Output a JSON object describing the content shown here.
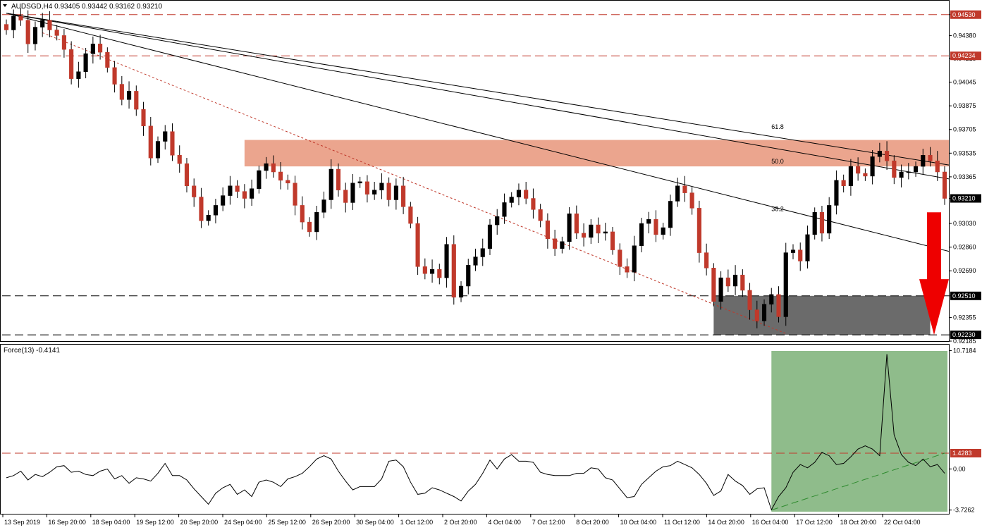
{
  "chart_data": [
    {
      "type": "candlestick",
      "symbol_header": "AUDSGD,H4  0.93405 0.93442 0.93162 0.93210",
      "ylim": [
        0.92185,
        0.94625
      ],
      "y_ticks": [
        "0.94530",
        "0.94380",
        "0.94215",
        "0.94045",
        "0.93875",
        "0.93705",
        "0.93535",
        "0.93365",
        "0.93210",
        "0.93030",
        "0.92860",
        "0.92690",
        "0.92510",
        "0.92355",
        "0.92230",
        "0.92185"
      ],
      "last_price": {
        "label": "0.93210",
        "value": 0.9321,
        "color": "#000000"
      },
      "horizontal_levels": [
        {
          "label": "0.94530",
          "value": 0.9453,
          "color": "#c0392b"
        },
        {
          "label": "0.94234",
          "value": 0.94234,
          "color": "#c0392b"
        },
        {
          "label": "0.92510",
          "value": 0.9251,
          "color": "#000000"
        },
        {
          "label": "0.92230",
          "value": 0.9223,
          "color": "#000000"
        }
      ],
      "resistance_zone": {
        "low": 0.9344,
        "high": 0.9363,
        "color": "#e8957a"
      },
      "support_zone": {
        "low": 0.9223,
        "high": 0.9251,
        "color": "#6b6b6b"
      },
      "fan_labels": [
        "61.8",
        "50.0",
        "38.2"
      ],
      "fan_origin": {
        "x_index": 0,
        "price": 0.9454
      },
      "fan_lines": [
        {
          "label": "61.8",
          "end_x_index": 130,
          "end_price": 0.9345
        },
        {
          "label": "50.0",
          "end_x_index": 130,
          "end_price": 0.9335
        },
        {
          "label": "38.2",
          "end_x_index": 130,
          "end_price": 0.9283
        }
      ],
      "fan_label_positions": [
        {
          "label": "61.8",
          "x_index": 106,
          "price": 0.9371
        },
        {
          "label": "50.0",
          "x_index": 106,
          "price": 0.9346
        },
        {
          "label": "38.2",
          "x_index": 106,
          "price": 0.9312
        }
      ],
      "trend_line": {
        "color": "#c0392b",
        "x0_index": 5,
        "p0": 0.944,
        "x1_index": 108,
        "p1": 0.9224
      },
      "arrow": {
        "direction": "down",
        "color": "#ee0000"
      },
      "x_tick_labels": [
        "13 Sep 2019",
        "16 Sep 20:00",
        "18 Sep 04:00",
        "19 Sep 12:00",
        "20 Sep 20:00",
        "24 Sep 04:00",
        "25 Sep 12:00",
        "26 Sep 20:00",
        "30 Sep 04:00",
        "1 Oct 12:00",
        "2 Oct 20:00",
        "4 Oct 04:00",
        "7 Oct 12:00",
        "8 Oct 20:00",
        "10 Oct 04:00",
        "11 Oct 12:00",
        "14 Oct 20:00",
        "16 Oct 04:00",
        "17 Oct 12:00",
        "18 Oct 20:00",
        "22 Oct 04:00"
      ],
      "closes": [
        0.9442,
        0.9452,
        0.9449,
        0.9432,
        0.9444,
        0.9449,
        0.9442,
        0.9438,
        0.9428,
        0.9407,
        0.9412,
        0.9425,
        0.9432,
        0.9426,
        0.9415,
        0.9403,
        0.9392,
        0.9398,
        0.9385,
        0.9373,
        0.935,
        0.9362,
        0.9369,
        0.9352,
        0.9346,
        0.933,
        0.9322,
        0.9305,
        0.9309,
        0.9316,
        0.9323,
        0.933,
        0.9326,
        0.9321,
        0.9328,
        0.9341,
        0.9346,
        0.934,
        0.9334,
        0.9332,
        0.9316,
        0.9304,
        0.9297,
        0.9311,
        0.932,
        0.9342,
        0.9327,
        0.9318,
        0.9332,
        0.9333,
        0.9324,
        0.9327,
        0.9332,
        0.932,
        0.933,
        0.9315,
        0.9303,
        0.9272,
        0.9267,
        0.927,
        0.9264,
        0.9288,
        0.925,
        0.9258,
        0.9273,
        0.9279,
        0.9285,
        0.9302,
        0.9308,
        0.9318,
        0.9322,
        0.9327,
        0.9321,
        0.9313,
        0.9305,
        0.9292,
        0.9285,
        0.929,
        0.931,
        0.9296,
        0.9293,
        0.9302,
        0.9296,
        0.9297,
        0.9284,
        0.9272,
        0.9268,
        0.9287,
        0.9303,
        0.9306,
        0.9295,
        0.93,
        0.9319,
        0.933,
        0.9325,
        0.9314,
        0.9282,
        0.9271,
        0.9247,
        0.9264,
        0.9258,
        0.9266,
        0.9255,
        0.9241,
        0.9233,
        0.9245,
        0.9252,
        0.9236,
        0.9282,
        0.9284,
        0.9276,
        0.9295,
        0.9311,
        0.9296,
        0.9316,
        0.9334,
        0.933,
        0.9344,
        0.9339,
        0.9337,
        0.9351,
        0.9355,
        0.9348,
        0.9336,
        0.934,
        0.934,
        0.9344,
        0.9352,
        0.9348,
        0.934,
        0.9321
      ],
      "plot_area_pixels_note": ""
    },
    {
      "type": "line",
      "title": "Force(13) -0.4141",
      "ylim": [
        -4.0,
        11.2
      ],
      "y_ticks": [
        "10.7184",
        "0.00",
        "-3.7262"
      ],
      "reference_level": {
        "label": "1.4283",
        "value": 1.4283,
        "color": "#c0392b"
      },
      "highlight_zone": {
        "from_x_index": 106,
        "to_x_index": 130,
        "color": "#8fbc8b"
      },
      "trend_line": {
        "color": "#2e8b2e",
        "x0_index": 106,
        "v0": -3.73,
        "x1_index": 130,
        "v1": 1.428
      },
      "values": [
        -0.8,
        -0.6,
        -0.2,
        -1.0,
        -0.5,
        -0.7,
        -0.3,
        0.2,
        0.3,
        -0.3,
        -0.2,
        -0.5,
        -0.6,
        -0.2,
        0.0,
        -0.9,
        -0.6,
        -1.3,
        -0.8,
        -0.9,
        -1.1,
        -0.4,
        0.5,
        -0.6,
        -0.6,
        -1.0,
        -1.8,
        -2.5,
        -3.2,
        -2.2,
        -1.7,
        -1.4,
        -2.3,
        -1.9,
        -2.5,
        -1.2,
        -1.0,
        -1.2,
        -1.6,
        -0.9,
        -0.7,
        -0.4,
        0.2,
        0.9,
        1.2,
        0.9,
        -0.2,
        -1.1,
        -1.9,
        -1.6,
        -1.6,
        -1.6,
        -0.9,
        0.7,
        0.8,
        0.2,
        -1.2,
        -2.3,
        -2.2,
        -1.7,
        -1.9,
        -2.2,
        -2.5,
        -2.9,
        -2.0,
        -1.4,
        -0.4,
        0.8,
        0.0,
        0.9,
        1.3,
        0.7,
        0.7,
        0.6,
        -0.3,
        -0.5,
        -0.6,
        -0.6,
        -0.6,
        -0.4,
        -0.4,
        0.1,
        0.0,
        -0.8,
        -1.0,
        -1.8,
        -2.6,
        -2.5,
        -1.4,
        -0.8,
        -0.2,
        0.2,
        0.3,
        0.7,
        0.4,
        0.1,
        -0.5,
        -1.3,
        -2.4,
        -2.0,
        -0.5,
        -1.1,
        -1.5,
        -2.3,
        -1.8,
        -1.7,
        -3.7,
        -2.5,
        -1.7,
        -0.3,
        0.4,
        0.1,
        0.6,
        1.5,
        1.2,
        0.4,
        0.5,
        1.1,
        1.8,
        2.1,
        1.8,
        1.2,
        10.4,
        3.1,
        1.3,
        0.6,
        0.3,
        0.9,
        0.2,
        0.4,
        -0.4
      ]
    }
  ]
}
